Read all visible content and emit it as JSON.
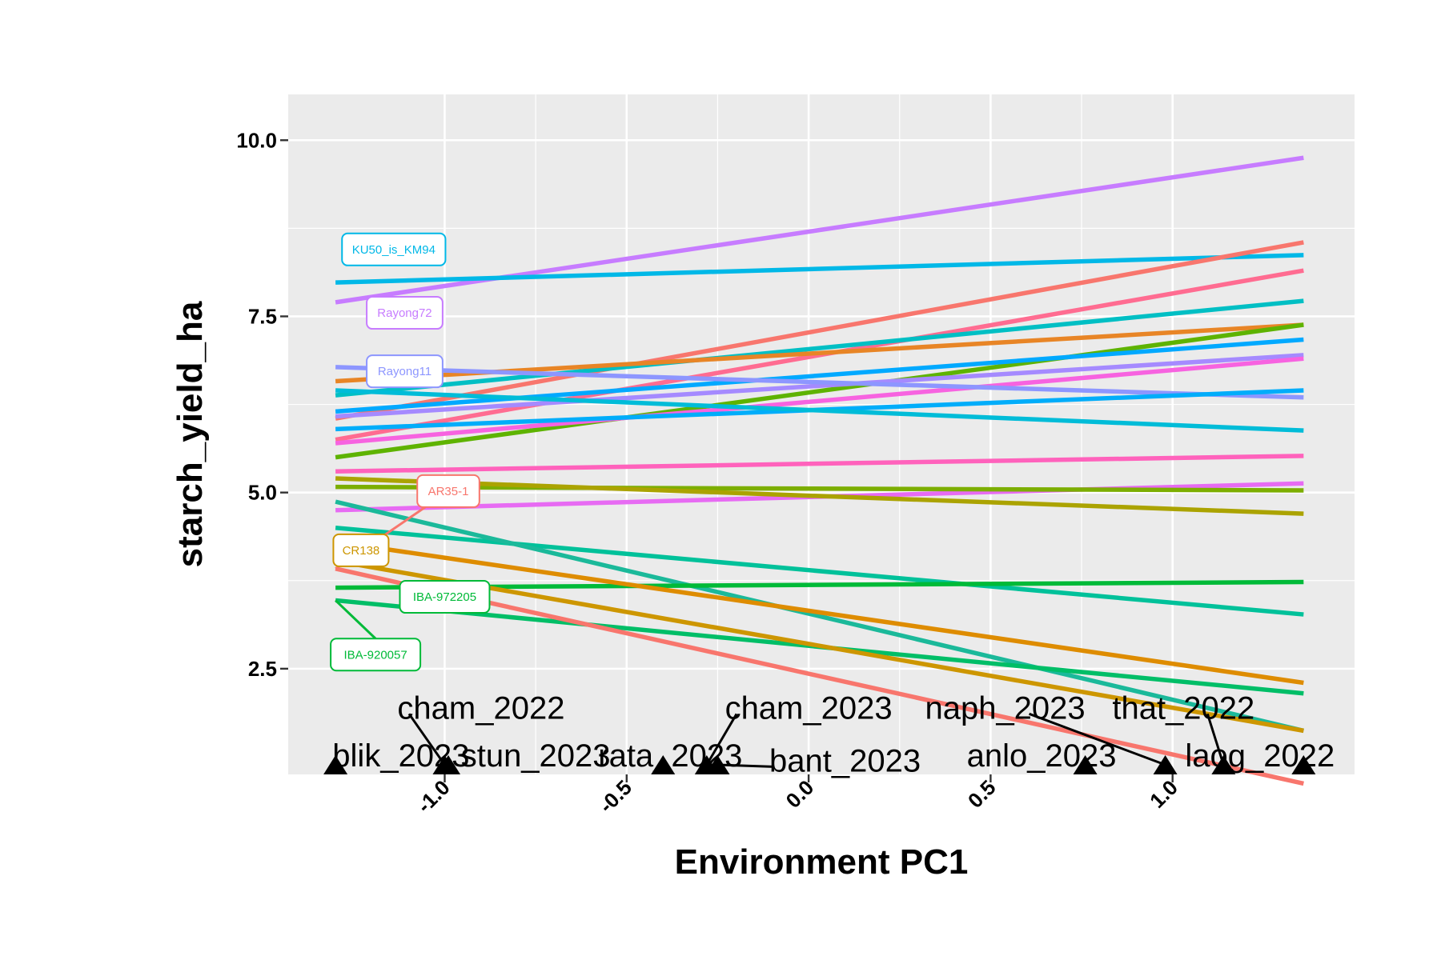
{
  "chart_data": {
    "type": "line",
    "xlabel": "Environment PC1",
    "ylabel": "starch_yield_ha",
    "xlim": [
      -1.43,
      1.5
    ],
    "ylim": [
      1.0,
      10.65
    ],
    "x_ticks": [
      -1.0,
      -0.5,
      0.0,
      0.5,
      1.0
    ],
    "x_tick_labels": [
      "-1.0",
      "-0.5",
      "0.0",
      "0.5",
      "1.0"
    ],
    "y_ticks": [
      2.5,
      5.0,
      7.5,
      10.0
    ],
    "y_tick_labels": [
      "2.5",
      "5.0",
      "7.5",
      "10.0"
    ],
    "grid": true,
    "legend": "none",
    "x_range": [
      -1.3,
      1.36
    ],
    "series": [
      {
        "color": "#C77CFF",
        "values": [
          7.7,
          9.75
        ]
      },
      {
        "color": "#00B8E7",
        "values": [
          7.98,
          8.37
        ]
      },
      {
        "color": "#F8766D",
        "values": [
          6.05,
          8.55
        ]
      },
      {
        "color": "#FF6C91",
        "values": [
          5.75,
          8.15
        ]
      },
      {
        "color": "#00BFC4",
        "values": [
          6.38,
          7.72
        ]
      },
      {
        "color": "#E88526",
        "values": [
          6.58,
          7.38
        ]
      },
      {
        "color": "#5EB300",
        "values": [
          5.5,
          7.38
        ]
      },
      {
        "color": "#00A9FF",
        "values": [
          6.15,
          7.17
        ]
      },
      {
        "color": "#A58AFF",
        "values": [
          6.08,
          6.95
        ]
      },
      {
        "color": "#F763E0",
        "values": [
          5.7,
          6.9
        ]
      },
      {
        "color": "#8D96FF",
        "values": [
          6.78,
          6.35
        ]
      },
      {
        "color": "#00ADFA",
        "values": [
          5.9,
          6.45
        ]
      },
      {
        "color": "#00BCD8",
        "values": [
          6.45,
          5.88
        ]
      },
      {
        "color": "#FF62BC",
        "values": [
          5.3,
          5.52
        ]
      },
      {
        "color": "#E76BF3",
        "values": [
          4.75,
          5.13
        ]
      },
      {
        "color": "#7CAE00",
        "values": [
          5.08,
          5.03
        ]
      },
      {
        "color": "#ABA300",
        "values": [
          5.2,
          4.7
        ]
      },
      {
        "color": "#00C19A",
        "values": [
          4.5,
          3.27
        ]
      },
      {
        "color": "#1BB99A",
        "values": [
          4.87,
          1.62
        ]
      },
      {
        "color": "#00BA38",
        "values": [
          3.65,
          3.73
        ]
      },
      {
        "color": "#00BE67",
        "values": [
          3.47,
          2.15
        ]
      },
      {
        "color": "#DE8C00",
        "values": [
          4.3,
          2.3
        ]
      },
      {
        "color": "#CD9600",
        "values": [
          4.03,
          1.62
        ]
      },
      {
        "color": "#F8766D",
        "values": [
          3.92,
          0.87
        ]
      }
    ],
    "genotype_labels": [
      {
        "text": "KU50_is_KM94",
        "color": "#00B8E7",
        "x": -1.14,
        "y": 8.45,
        "anchor_x": -1.3,
        "anchor_y": 7.98,
        "leader": false
      },
      {
        "text": "Rayong72",
        "color": "#C77CFF",
        "x": -1.11,
        "y": 7.55,
        "anchor_x": -1.3,
        "anchor_y": 7.7,
        "leader": false
      },
      {
        "text": "Rayong11",
        "color": "#8D96FF",
        "x": -1.11,
        "y": 6.72,
        "anchor_x": -1.3,
        "anchor_y": 6.78,
        "leader": false
      },
      {
        "text": "AR35-1",
        "color": "#F8766D",
        "x": -0.99,
        "y": 5.02,
        "anchor_x": -1.3,
        "anchor_y": 3.92,
        "leader": true
      },
      {
        "text": "CR138",
        "color": "#CD9600",
        "x": -1.23,
        "y": 4.18,
        "anchor_x": -1.3,
        "anchor_y": 4.03,
        "leader": false
      },
      {
        "text": "IBA-972205",
        "color": "#00BA38",
        "x": -1.0,
        "y": 3.52,
        "anchor_x": -1.3,
        "anchor_y": 3.65,
        "leader": false
      },
      {
        "text": "IBA-920057",
        "color": "#00BA38",
        "x": -1.19,
        "y": 2.7,
        "anchor_x": -1.3,
        "anchor_y": 3.47,
        "leader": true
      }
    ],
    "environments": [
      {
        "name": "blik_2023",
        "pc1": -1.3,
        "label_x": -1.12,
        "label_y": 1.27,
        "leader": false
      },
      {
        "name": "cham_2022",
        "pc1": -1.0,
        "label_x": -0.9,
        "label_y": 1.95,
        "leader": true
      },
      {
        "name": "stun_2023",
        "pc1": -0.99,
        "label_x": -0.75,
        "label_y": 1.27,
        "leader": false
      },
      {
        "name": "rata_2023",
        "pc1": -0.4,
        "label_x": -0.38,
        "label_y": 1.27,
        "leader": false
      },
      {
        "name": "cham_2023",
        "pc1": -0.28,
        "label_x": 0.0,
        "label_y": 1.95,
        "leader": true
      },
      {
        "name": "bant_2023",
        "pc1": -0.25,
        "label_x": 0.1,
        "label_y": 1.2,
        "leader": true
      },
      {
        "name": "anlo_2023",
        "pc1": 0.76,
        "label_x": 0.64,
        "label_y": 1.27,
        "leader": false
      },
      {
        "name": "naph_2023",
        "pc1": 0.98,
        "label_x": 0.54,
        "label_y": 1.95,
        "leader": true
      },
      {
        "name": "that_2022",
        "pc1": 1.14,
        "label_x": 1.03,
        "label_y": 1.95,
        "leader": true
      },
      {
        "name": "laog_2022",
        "pc1": 1.36,
        "label_x": 1.24,
        "label_y": 1.27,
        "leader": false
      }
    ]
  }
}
